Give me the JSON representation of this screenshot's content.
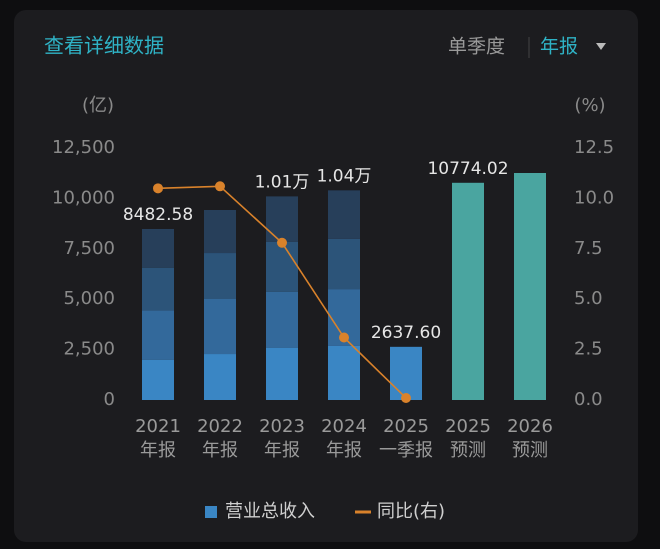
{
  "header": {
    "title": "查看详细数据",
    "tabs": [
      "单季度",
      "年报"
    ]
  },
  "chart_data": {
    "type": "bar",
    "y_unit": "(亿)",
    "y2_unit": "(%)",
    "categories": [
      [
        "2021",
        "年报"
      ],
      [
        "2022",
        "年报"
      ],
      [
        "2023",
        "年报"
      ],
      [
        "2024",
        "年报"
      ],
      [
        "2025",
        "一季报"
      ],
      [
        "2025",
        "预测"
      ],
      [
        "2026",
        "预测"
      ]
    ],
    "ylim": [
      0,
      12500
    ],
    "yticks": [
      0,
      {
        "value": 2500,
        "label": "2,500"
      },
      {
        "value": 5000,
        "label": "5,000"
      },
      {
        "value": 7500,
        "label": "7,500"
      },
      {
        "value": 10000,
        "label": "10,000"
      },
      {
        "value": 12500,
        "label": "12,500"
      }
    ],
    "y2lim": [
      0,
      12.5
    ],
    "y2ticks": [
      {
        "value": 0,
        "label": "0.0"
      },
      2.5,
      {
        "value": 5,
        "label": "5.0"
      },
      7.5,
      {
        "value": 10,
        "label": "10.0"
      },
      12.5
    ],
    "series": [
      {
        "name": "营业总收入",
        "color": "#3a86c4",
        "stack": true,
        "values": [
          2000,
          2280,
          2580,
          2680,
          2637.6,
          null,
          null
        ]
      },
      {
        "color": "#33699b",
        "stack": true,
        "values": [
          2450,
          2730,
          2780,
          2820,
          null,
          null,
          null
        ]
      },
      {
        "color": "#2c5479",
        "stack": true,
        "values": [
          2100,
          2280,
          2480,
          2490,
          null,
          null,
          null
        ]
      },
      {
        "color": "#273f5a",
        "stack": true,
        "values": [
          1932.58,
          2135,
          2260,
          2410,
          null,
          null,
          null
        ]
      },
      {
        "color": "#4aa5a0",
        "stack": true,
        "values": [
          null,
          null,
          null,
          null,
          null,
          10774.02,
          11260
        ]
      },
      {
        "name": "同比(右)",
        "type": "line",
        "axis": "y2",
        "color": "#d9822b",
        "values": [
          10.5,
          10.6,
          7.8,
          3.1,
          0.1,
          null,
          null
        ]
      }
    ],
    "totals": {
      "values": [
        8482.58,
        null,
        10100,
        10400,
        2637.6,
        10774.02,
        null
      ],
      "value_labels": [
        "8482.58",
        null,
        "1.01万",
        "1.04万",
        "2637.60",
        "10774.02",
        null
      ]
    }
  }
}
